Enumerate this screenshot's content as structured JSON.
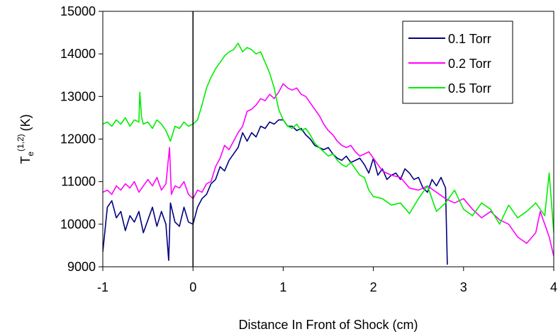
{
  "chart_data": {
    "type": "line",
    "title": "",
    "xlabel": "Distance In Front of Shock (cm)",
    "ylabel": {
      "main": "T",
      "subscript": "e",
      "superscript": "(1,2)",
      "unit": "(K)"
    },
    "xlim": [
      -1,
      4
    ],
    "ylim": [
      9000,
      15000
    ],
    "x_ticks": [
      -1,
      0,
      1,
      2,
      3,
      4
    ],
    "y_ticks": [
      9000,
      10000,
      11000,
      12000,
      13000,
      14000,
      15000
    ],
    "grid": false,
    "reference_line_x": 0,
    "legend_position": "top-right",
    "series": [
      {
        "name": "0.1 Torr",
        "color": "#000080",
        "x": [
          -1.0,
          -0.95,
          -0.9,
          -0.85,
          -0.8,
          -0.75,
          -0.7,
          -0.65,
          -0.6,
          -0.55,
          -0.5,
          -0.45,
          -0.4,
          -0.35,
          -0.3,
          -0.27,
          -0.25,
          -0.2,
          -0.15,
          -0.1,
          -0.05,
          0.0,
          0.05,
          0.1,
          0.15,
          0.2,
          0.25,
          0.3,
          0.35,
          0.4,
          0.45,
          0.5,
          0.55,
          0.6,
          0.65,
          0.7,
          0.75,
          0.8,
          0.85,
          0.9,
          0.95,
          1.0,
          1.05,
          1.1,
          1.15,
          1.2,
          1.25,
          1.3,
          1.35,
          1.4,
          1.45,
          1.5,
          1.55,
          1.6,
          1.65,
          1.7,
          1.75,
          1.8,
          1.85,
          1.9,
          1.95,
          2.0,
          2.05,
          2.1,
          2.15,
          2.2,
          2.25,
          2.3,
          2.35,
          2.4,
          2.45,
          2.5,
          2.55,
          2.6,
          2.65,
          2.7,
          2.75,
          2.8,
          2.82
        ],
        "values": [
          9350,
          10400,
          10550,
          10150,
          10300,
          9850,
          10200,
          10050,
          10300,
          9800,
          10100,
          10400,
          9950,
          10300,
          10000,
          9150,
          10500,
          10050,
          9950,
          10400,
          10050,
          10000,
          10400,
          10600,
          10700,
          10950,
          11050,
          11350,
          11250,
          11500,
          11650,
          11800,
          12150,
          11950,
          12150,
          12050,
          12300,
          12250,
          12400,
          12350,
          12450,
          12450,
          12300,
          12300,
          12200,
          12250,
          12100,
          12000,
          11850,
          11800,
          11750,
          11800,
          11650,
          11550,
          11500,
          11600,
          11450,
          11500,
          11550,
          11400,
          11200,
          11550,
          11150,
          11300,
          11050,
          11150,
          11200,
          11050,
          11300,
          11200,
          11050,
          11100,
          10850,
          10750,
          11050,
          10900,
          11100,
          10850,
          9050
        ]
      },
      {
        "name": "0.2 Torr",
        "color": "#ff00ff",
        "x": [
          -1.0,
          -0.95,
          -0.9,
          -0.85,
          -0.8,
          -0.75,
          -0.7,
          -0.65,
          -0.6,
          -0.55,
          -0.5,
          -0.45,
          -0.4,
          -0.35,
          -0.3,
          -0.26,
          -0.24,
          -0.2,
          -0.15,
          -0.1,
          -0.05,
          0.0,
          0.05,
          0.1,
          0.15,
          0.2,
          0.25,
          0.3,
          0.35,
          0.4,
          0.45,
          0.5,
          0.55,
          0.6,
          0.65,
          0.7,
          0.75,
          0.8,
          0.85,
          0.9,
          0.95,
          1.0,
          1.05,
          1.1,
          1.15,
          1.2,
          1.25,
          1.3,
          1.35,
          1.4,
          1.45,
          1.5,
          1.55,
          1.6,
          1.65,
          1.7,
          1.75,
          1.8,
          1.85,
          1.9,
          1.95,
          2.0,
          2.1,
          2.2,
          2.3,
          2.4,
          2.5,
          2.6,
          2.7,
          2.8,
          2.9,
          3.0,
          3.1,
          3.2,
          3.3,
          3.4,
          3.5,
          3.6,
          3.7,
          3.8,
          3.85,
          3.9,
          3.95,
          4.0
        ],
        "values": [
          10750,
          10800,
          10700,
          10900,
          10800,
          10950,
          10850,
          11000,
          10750,
          10900,
          11050,
          10900,
          11100,
          10800,
          10950,
          11800,
          10700,
          10900,
          10850,
          11000,
          10700,
          10600,
          10800,
          10750,
          10950,
          11000,
          11350,
          11550,
          11850,
          11750,
          11950,
          12150,
          12300,
          12650,
          12700,
          12800,
          12950,
          12900,
          13050,
          12950,
          13100,
          13300,
          13200,
          13150,
          13200,
          13050,
          13000,
          12850,
          12700,
          12550,
          12350,
          12200,
          12100,
          11950,
          11850,
          11800,
          11850,
          11700,
          11600,
          11650,
          11700,
          11550,
          11250,
          11150,
          11100,
          10850,
          10800,
          10900,
          10750,
          10600,
          10500,
          10600,
          10350,
          10150,
          10300,
          10100,
          10000,
          9700,
          9550,
          9800,
          10300,
          10000,
          9700,
          9250
        ]
      },
      {
        "name": "0.5 Torr",
        "color": "#00ee00",
        "x": [
          -1.0,
          -0.95,
          -0.9,
          -0.85,
          -0.8,
          -0.75,
          -0.7,
          -0.65,
          -0.6,
          -0.59,
          -0.57,
          -0.55,
          -0.5,
          -0.45,
          -0.4,
          -0.35,
          -0.3,
          -0.25,
          -0.2,
          -0.15,
          -0.1,
          -0.05,
          0.0,
          0.05,
          0.1,
          0.15,
          0.2,
          0.25,
          0.3,
          0.35,
          0.4,
          0.45,
          0.5,
          0.55,
          0.6,
          0.65,
          0.7,
          0.75,
          0.8,
          0.85,
          0.9,
          0.95,
          1.0,
          1.05,
          1.1,
          1.15,
          1.2,
          1.25,
          1.3,
          1.35,
          1.4,
          1.45,
          1.5,
          1.55,
          1.6,
          1.65,
          1.7,
          1.75,
          1.8,
          1.85,
          1.9,
          1.95,
          2.0,
          2.1,
          2.2,
          2.3,
          2.4,
          2.5,
          2.6,
          2.7,
          2.8,
          2.9,
          3.0,
          3.1,
          3.2,
          3.3,
          3.4,
          3.5,
          3.6,
          3.7,
          3.8,
          3.9,
          3.95,
          4.0
        ],
        "values": [
          12350,
          12400,
          12300,
          12450,
          12350,
          12500,
          12300,
          12450,
          12400,
          13100,
          12500,
          12350,
          12400,
          12250,
          12450,
          12350,
          12200,
          11950,
          12300,
          12250,
          12400,
          12300,
          12350,
          12450,
          12800,
          13200,
          13450,
          13650,
          13800,
          13950,
          14050,
          14100,
          14250,
          14050,
          14150,
          14100,
          14000,
          14050,
          13800,
          13550,
          13200,
          12700,
          12450,
          12300,
          12250,
          12350,
          12200,
          12250,
          12100,
          11900,
          11800,
          11700,
          11600,
          11650,
          11500,
          11400,
          11350,
          11450,
          11300,
          11150,
          11100,
          10800,
          10650,
          10600,
          10450,
          10500,
          10250,
          10600,
          10900,
          10300,
          10500,
          10800,
          10350,
          10200,
          10500,
          10350,
          10000,
          10450,
          10150,
          10300,
          10500,
          10200,
          11200,
          9800
        ]
      }
    ]
  }
}
